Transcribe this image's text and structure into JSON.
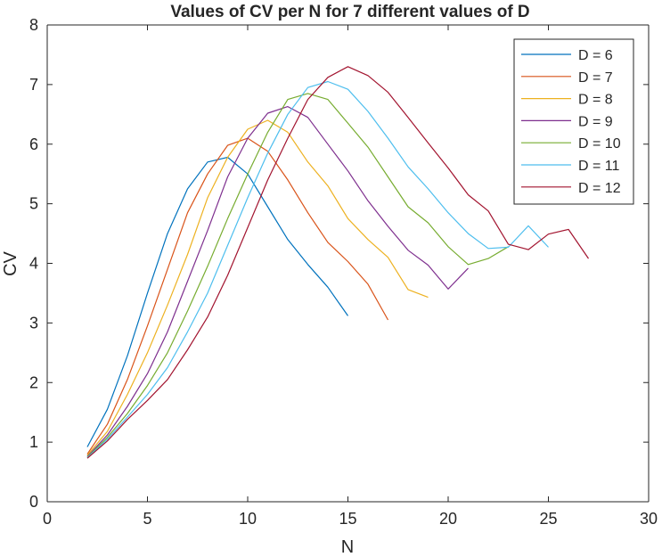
{
  "chart_data": {
    "type": "line",
    "title": "Values of CV per N for 7 different values of D",
    "xlabel": "N",
    "ylabel": "CV",
    "xlim": [
      0,
      30
    ],
    "ylim": [
      0,
      8
    ],
    "xticks": [
      0,
      5,
      10,
      15,
      20,
      25,
      30
    ],
    "yticks": [
      0,
      1,
      2,
      3,
      4,
      5,
      6,
      7,
      8
    ],
    "xtick_labels": [
      "0",
      "5",
      "10",
      "15",
      "20",
      "25",
      "30"
    ],
    "ytick_labels": [
      "0",
      "1",
      "2",
      "3",
      "4",
      "5",
      "6",
      "7",
      "8"
    ],
    "grid": false,
    "legend_position": "top-right",
    "series": [
      {
        "name": "D = 6",
        "color": "#0072BD",
        "x": [
          2,
          3,
          4,
          5,
          6,
          7,
          8,
          9,
          10,
          11,
          12,
          13,
          14,
          15
        ],
        "y": [
          0.92,
          1.55,
          2.45,
          3.5,
          4.5,
          5.25,
          5.7,
          5.78,
          5.5,
          4.95,
          4.4,
          3.98,
          3.6,
          3.12
        ]
      },
      {
        "name": "D = 7",
        "color": "#D95319",
        "x": [
          2,
          3,
          4,
          5,
          6,
          7,
          8,
          9,
          10,
          11,
          12,
          13,
          14,
          15,
          16,
          17
        ],
        "y": [
          0.8,
          1.3,
          2.05,
          2.95,
          3.9,
          4.85,
          5.5,
          5.98,
          6.1,
          5.88,
          5.4,
          4.85,
          4.35,
          4.03,
          3.65,
          3.05
        ]
      },
      {
        "name": "D = 8",
        "color": "#EDB120",
        "x": [
          2,
          3,
          4,
          5,
          6,
          7,
          8,
          9,
          10,
          11,
          12,
          13,
          14,
          15,
          16,
          17,
          18,
          19
        ],
        "y": [
          0.78,
          1.18,
          1.8,
          2.5,
          3.3,
          4.15,
          5.1,
          5.78,
          6.25,
          6.4,
          6.2,
          5.7,
          5.3,
          4.75,
          4.4,
          4.1,
          3.56,
          3.43
        ]
      },
      {
        "name": "D = 9",
        "color": "#7E2F8E",
        "x": [
          2,
          3,
          4,
          5,
          6,
          7,
          8,
          9,
          10,
          11,
          12,
          13,
          14,
          15,
          16,
          17,
          18,
          19,
          20,
          21
        ],
        "y": [
          0.76,
          1.12,
          1.6,
          2.15,
          2.85,
          3.7,
          4.55,
          5.45,
          6.1,
          6.52,
          6.63,
          6.45,
          6.0,
          5.55,
          5.05,
          4.62,
          4.22,
          3.97,
          3.57,
          3.92
        ]
      },
      {
        "name": "D = 10",
        "color": "#77AC30",
        "x": [
          2,
          3,
          4,
          5,
          6,
          7,
          8,
          9,
          10,
          11,
          12,
          13,
          14,
          15,
          16,
          17,
          18,
          19,
          20,
          21,
          22,
          23
        ],
        "y": [
          0.75,
          1.08,
          1.48,
          1.95,
          2.5,
          3.2,
          3.95,
          4.75,
          5.5,
          6.2,
          6.75,
          6.85,
          6.75,
          6.35,
          5.95,
          5.45,
          4.95,
          4.68,
          4.28,
          3.98,
          4.08,
          4.28
        ]
      },
      {
        "name": "D = 11",
        "color": "#4DBEEE",
        "x": [
          2,
          3,
          4,
          5,
          6,
          7,
          8,
          9,
          10,
          11,
          12,
          13,
          14,
          15,
          16,
          17,
          18,
          19,
          20,
          21,
          22,
          23,
          24,
          25
        ],
        "y": [
          0.74,
          1.05,
          1.42,
          1.8,
          2.25,
          2.85,
          3.5,
          4.3,
          5.1,
          5.85,
          6.5,
          6.95,
          7.05,
          6.92,
          6.55,
          6.1,
          5.62,
          5.25,
          4.85,
          4.5,
          4.25,
          4.27,
          4.63,
          4.27
        ]
      },
      {
        "name": "D = 12",
        "color": "#A2142F",
        "x": [
          2,
          3,
          4,
          5,
          6,
          7,
          8,
          9,
          10,
          11,
          12,
          13,
          14,
          15,
          16,
          17,
          18,
          19,
          20,
          21,
          22,
          23,
          24,
          25,
          26,
          27
        ],
        "y": [
          0.73,
          1.02,
          1.38,
          1.7,
          2.05,
          2.55,
          3.1,
          3.8,
          4.6,
          5.4,
          6.1,
          6.75,
          7.12,
          7.3,
          7.15,
          6.87,
          6.45,
          6.02,
          5.6,
          5.15,
          4.88,
          4.32,
          4.23,
          4.49,
          4.57,
          4.08
        ]
      }
    ]
  }
}
